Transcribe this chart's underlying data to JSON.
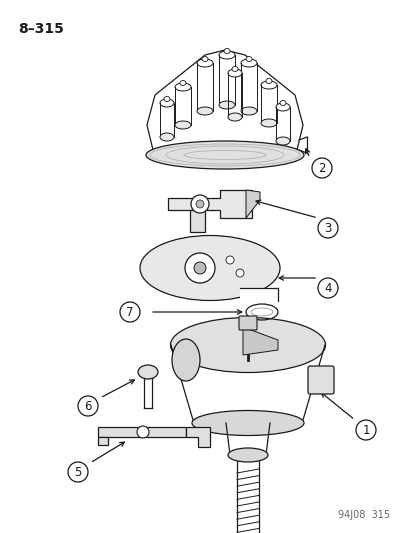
{
  "title_text": "8–315",
  "footer_text": "94J08  315",
  "bg_color": "#ffffff",
  "line_color": "#1a1a1a",
  "fill_color": "#f0f0f0",
  "dark_fill": "#c8c8c8",
  "title_fontsize": 10,
  "footer_fontsize": 7,
  "label_fontsize": 8.5
}
